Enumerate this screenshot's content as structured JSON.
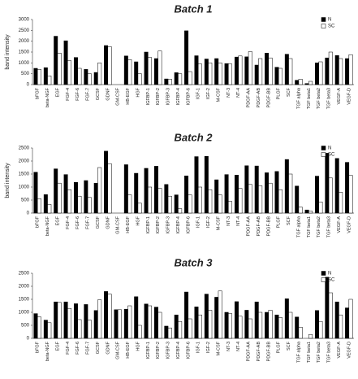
{
  "chart_data": [
    {
      "type": "bar",
      "title": "Batch 1",
      "ylabel": "band intensity",
      "categories": [
        "bFGF",
        "beta-NGF",
        "EGF",
        "FGF-4",
        "FGF-6",
        "FGF-7",
        "GCSF",
        "GDNF",
        "GM-CSF",
        "HB-EGF",
        "HGF",
        "IGFBP-1",
        "IGFBP-2",
        "IGFBP-3",
        "IGFBP-4",
        "IGFBP-6",
        "IGF-1",
        "IGF-2",
        "M-CSF",
        "NT-3",
        "NT-4",
        "PDGF-AA",
        "PDGF-AB",
        "PDGF-BB",
        "PLGF",
        "SCF",
        "TGF alpha",
        "TGF beta1",
        "TGF beta2",
        "TGF beta3",
        "VEGF-A",
        "VEGF-D"
      ],
      "series": [
        {
          "name": "N",
          "color": "#000000",
          "values": [
            750,
            780,
            2230,
            2020,
            1250,
            700,
            560,
            1800,
            0,
            1320,
            1050,
            1500,
            1200,
            260,
            550,
            2480,
            1330,
            1180,
            1200,
            970,
            1270,
            1280,
            900,
            1450,
            800,
            1400,
            200,
            50,
            1000,
            1230,
            1340,
            1200
          ]
        },
        {
          "name": "SC",
          "color": "#ffffff",
          "values": [
            700,
            400,
            1450,
            1100,
            750,
            500,
            1000,
            1750,
            0,
            1150,
            500,
            1250,
            1550,
            250,
            500,
            600,
            950,
            1000,
            1000,
            950,
            1320,
            1520,
            1200,
            1230,
            750,
            1200,
            250,
            150,
            1050,
            1500,
            1200,
            1380
          ]
        }
      ],
      "ylim": [
        0,
        3000
      ],
      "yticks": [
        0,
        500,
        1000,
        1500,
        2000,
        2500,
        3000
      ],
      "legend": "upper right"
    },
    {
      "type": "bar",
      "title": "Batch 2",
      "ylabel": "band intensity",
      "categories": [
        "bFGF",
        "beta-NGF",
        "EGF",
        "FGF-4",
        "FGF-6",
        "FGF-7",
        "GCSF",
        "GDNF",
        "GM-CSF",
        "HB-EGF",
        "HGF",
        "IGFBP-1",
        "IGFBP-2",
        "IGFBP-3",
        "IGFBP-4",
        "IGFBP-6",
        "IGF-1",
        "IGF-2",
        "M-CSF",
        "NT-3",
        "NT-4",
        "PDGF-AA",
        "PDGF-AB",
        "PDGF-BB",
        "PLGF",
        "SCF",
        "TGF alpha",
        "TGF beta1",
        "TGF beta2",
        "TGF beta3",
        "VEGF-A",
        "VEGF-D"
      ],
      "series": [
        {
          "name": "N",
          "color": "#000000",
          "values": [
            1570,
            710,
            1700,
            1480,
            1180,
            1250,
            1150,
            2380,
            0,
            1860,
            1530,
            1720,
            1800,
            1100,
            700,
            1430,
            2170,
            2180,
            1280,
            1480,
            1460,
            1820,
            1810,
            1550,
            1600,
            2060,
            1040,
            120,
            1420,
            2300,
            2100,
            1950
          ]
        },
        {
          "name": "SC",
          "color": "#ffffff",
          "values": [
            550,
            330,
            1150,
            900,
            650,
            600,
            1750,
            1900,
            0,
            700,
            380,
            1000,
            950,
            650,
            170,
            700,
            1000,
            900,
            700,
            450,
            950,
            1100,
            1050,
            1150,
            900,
            1500,
            230,
            80,
            430,
            1350,
            800,
            1450
          ]
        }
      ],
      "ylim": [
        0,
        2500
      ],
      "yticks": [
        0,
        500,
        1000,
        1500,
        2000,
        2500
      ],
      "legend": "upper right"
    },
    {
      "type": "bar",
      "title": "Batch 3",
      "categories": [
        "bFGF",
        "beta-NGF",
        "EGF",
        "FGF-4",
        "FGF-6",
        "FGF-7",
        "GCSF",
        "GDNF",
        "GM-CSF",
        "HB-EGF",
        "HGF",
        "IGFBP-1",
        "IGFBP-2",
        "IGFBP-3",
        "IGFBP-4",
        "IGFBP-6",
        "IGF-1",
        "IGF-2",
        "M-CSF",
        "NT-3",
        "NT-4",
        "PDGF-AA",
        "PDGF-AB",
        "PDGF-BB",
        "PLGF",
        "SCF",
        "TGF alpha",
        "TGF beta1",
        "TGF beta2",
        "TGF beta3",
        "VEGF-A",
        "VEGF-D"
      ],
      "series": [
        {
          "name": "N",
          "color": "#000000",
          "values": [
            950,
            700,
            1400,
            1400,
            1330,
            1300,
            1070,
            1800,
            1100,
            1120,
            1600,
            1320,
            1200,
            470,
            900,
            1780,
            1210,
            1700,
            1580,
            1000,
            1410,
            1080,
            1400,
            1000,
            900,
            1520,
            820,
            0,
            1070,
            2350,
            1400,
            1170
          ]
        },
        {
          "name": "SC",
          "color": "#ffffff",
          "values": [
            820,
            600,
            1380,
            1150,
            720,
            700,
            1480,
            1700,
            1100,
            1250,
            500,
            1250,
            1000,
            400,
            650,
            750,
            900,
            1080,
            1820,
            950,
            850,
            750,
            1000,
            1080,
            800,
            1000,
            430,
            150,
            650,
            1750,
            900,
            1500
          ]
        }
      ],
      "ylim": [
        0,
        2500
      ],
      "yticks": [
        0,
        500,
        1000,
        1500,
        2000,
        2500
      ],
      "legend": "upper right"
    }
  ]
}
